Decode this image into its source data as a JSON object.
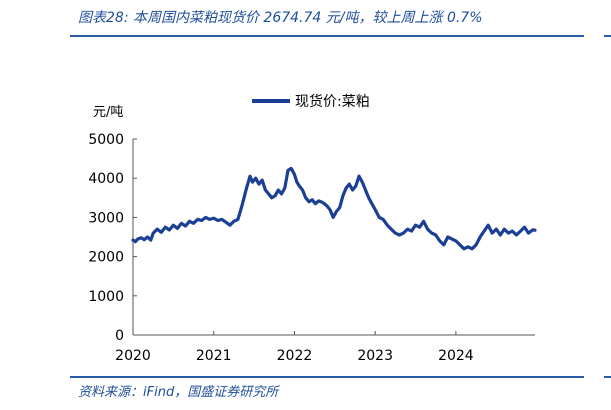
{
  "header": {
    "figure_title": "图表28:  本周国内菜粕现货价 2674.74 元/吨，较上周上涨 0.7%"
  },
  "footer": {
    "source": "资料来源：iFind，国盛证券研究所"
  },
  "colors": {
    "accent": "#1f4e9a",
    "series": "#1b3f94"
  },
  "chart_data": {
    "type": "line",
    "title": "",
    "xlabel": "",
    "ylabel": "元/吨",
    "ylim": [
      0,
      5000
    ],
    "yticks": [
      0,
      1000,
      2000,
      3000,
      4000,
      5000
    ],
    "xticks": [
      "2020",
      "2021",
      "2022",
      "2023",
      "2024"
    ],
    "xlim": [
      2020.0,
      2024.98
    ],
    "grid": false,
    "legend_position": "top-center",
    "series": [
      {
        "name": "现货价:菜粕",
        "x": [
          2020.0,
          2020.03,
          2020.06,
          2020.1,
          2020.14,
          2020.18,
          2020.22,
          2020.25,
          2020.3,
          2020.35,
          2020.4,
          2020.45,
          2020.5,
          2020.55,
          2020.6,
          2020.65,
          2020.7,
          2020.75,
          2020.8,
          2020.85,
          2020.9,
          2020.95,
          2021.0,
          2021.05,
          2021.1,
          2021.15,
          2021.2,
          2021.25,
          2021.3,
          2021.35,
          2021.4,
          2021.45,
          2021.48,
          2021.52,
          2021.56,
          2021.6,
          2021.64,
          2021.68,
          2021.72,
          2021.76,
          2021.8,
          2021.84,
          2021.88,
          2021.92,
          2021.96,
          2022.0,
          2022.03,
          2022.06,
          2022.1,
          2022.14,
          2022.18,
          2022.22,
          2022.26,
          2022.3,
          2022.35,
          2022.4,
          2022.44,
          2022.48,
          2022.52,
          2022.56,
          2022.6,
          2022.64,
          2022.68,
          2022.72,
          2022.76,
          2022.8,
          2022.84,
          2022.88,
          2022.92,
          2022.96,
          2023.0,
          2023.05,
          2023.1,
          2023.15,
          2023.2,
          2023.25,
          2023.3,
          2023.35,
          2023.4,
          2023.45,
          2023.5,
          2023.55,
          2023.6,
          2023.65,
          2023.7,
          2023.75,
          2023.8,
          2023.85,
          2023.9,
          2023.95,
          2024.0,
          2024.05,
          2024.1,
          2024.15,
          2024.2,
          2024.25,
          2024.3,
          2024.35,
          2024.4,
          2024.45,
          2024.5,
          2024.55,
          2024.6,
          2024.65,
          2024.7,
          2024.75,
          2024.8,
          2024.85,
          2024.9,
          2024.95,
          2024.98
        ],
        "values": [
          2420,
          2380,
          2450,
          2480,
          2430,
          2500,
          2420,
          2600,
          2700,
          2620,
          2750,
          2680,
          2800,
          2720,
          2850,
          2780,
          2900,
          2850,
          2950,
          2920,
          3000,
          2950,
          2980,
          2920,
          2950,
          2880,
          2800,
          2900,
          2950,
          3300,
          3700,
          4050,
          3900,
          4000,
          3850,
          3950,
          3700,
          3600,
          3500,
          3550,
          3700,
          3600,
          3750,
          4200,
          4250,
          4100,
          3900,
          3800,
          3700,
          3500,
          3400,
          3450,
          3350,
          3420,
          3380,
          3300,
          3200,
          3000,
          3150,
          3250,
          3550,
          3750,
          3850,
          3700,
          3800,
          4050,
          3900,
          3700,
          3500,
          3350,
          3200,
          3000,
          2950,
          2800,
          2700,
          2600,
          2550,
          2600,
          2700,
          2650,
          2800,
          2750,
          2900,
          2700,
          2600,
          2550,
          2400,
          2300,
          2500,
          2450,
          2400,
          2300,
          2200,
          2250,
          2200,
          2300,
          2500,
          2650,
          2800,
          2600,
          2700,
          2550,
          2700,
          2600,
          2650,
          2550,
          2650,
          2750,
          2600,
          2680,
          2674
        ]
      }
    ]
  }
}
